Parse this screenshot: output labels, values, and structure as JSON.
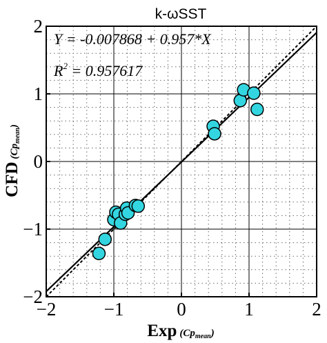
{
  "chart_data": {
    "type": "scatter",
    "title": "k-ωSST",
    "xlabel": "Exp",
    "xlabel_sub": "(Cp",
    "xlabel_subsub": "mean",
    "xlabel_close": ")",
    "ylabel": "CFD",
    "ylabel_sub": "(Cp",
    "ylabel_subsub": "mean",
    "ylabel_close": ")",
    "xlim": [
      -2,
      2
    ],
    "ylim": [
      -2,
      2
    ],
    "xticks": [
      -2,
      -1,
      0,
      1,
      2
    ],
    "yticks": [
      -2,
      -1,
      0,
      1,
      2
    ],
    "xtick_labels": [
      "−2",
      "−1",
      "0",
      "1",
      "2"
    ],
    "ytick_labels": [
      "−2",
      "−1",
      "0",
      "1",
      "2"
    ],
    "grid": true,
    "fit": {
      "intercept": -0.007868,
      "slope": 0.957
    },
    "reference_line": {
      "slope": 1,
      "intercept": 0
    },
    "annotation_equation": "Y = -0.007868 + 0.957*X",
    "annotation_r2_label": "R",
    "annotation_r2_exp": "2",
    "annotation_r2_value": " = 0.957617",
    "points": [
      {
        "x": -1.22,
        "y": -1.36
      },
      {
        "x": -1.13,
        "y": -1.15
      },
      {
        "x": -1.0,
        "y": -0.86
      },
      {
        "x": -0.97,
        "y": -0.75
      },
      {
        "x": -0.93,
        "y": -0.78
      },
      {
        "x": -0.9,
        "y": -0.91
      },
      {
        "x": -0.83,
        "y": -0.78
      },
      {
        "x": -0.81,
        "y": -0.69
      },
      {
        "x": -0.79,
        "y": -0.76
      },
      {
        "x": -0.68,
        "y": -0.65
      },
      {
        "x": -0.64,
        "y": -0.66
      },
      {
        "x": 0.47,
        "y": 0.52
      },
      {
        "x": 0.49,
        "y": 0.41
      },
      {
        "x": 0.87,
        "y": 0.9
      },
      {
        "x": 0.92,
        "y": 1.06
      },
      {
        "x": 1.07,
        "y": 1.01
      },
      {
        "x": 1.12,
        "y": 0.77
      }
    ],
    "marker_color": "#33d6e0",
    "marker_edge": "#000000"
  }
}
